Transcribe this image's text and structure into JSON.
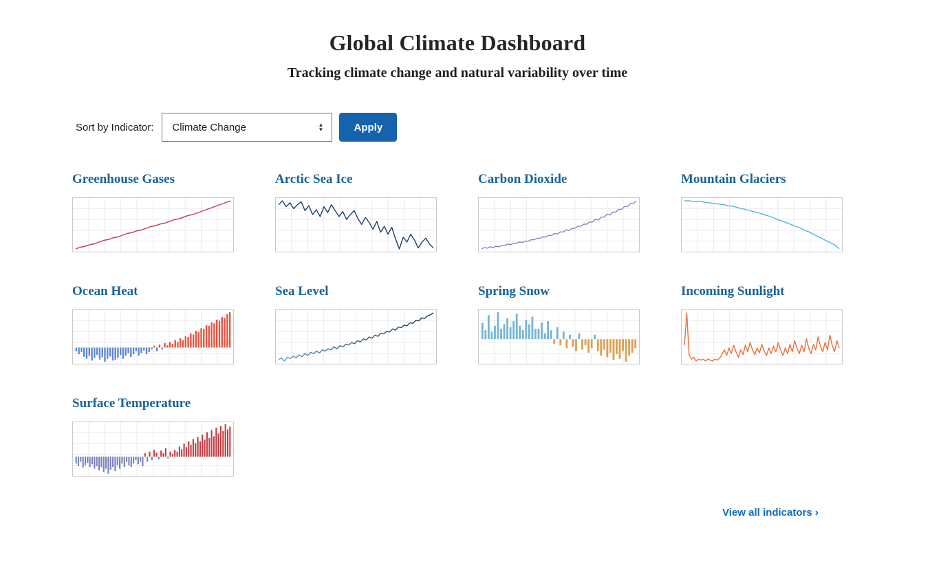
{
  "header": {
    "title": "Global Climate Dashboard",
    "subtitle": "Tracking climate change and natural variability over time"
  },
  "controls": {
    "sort_label": "Sort by Indicator:",
    "selected_option": "Climate Change",
    "apply_label": "Apply"
  },
  "footer": {
    "view_all_label": "View all indicators",
    "chevron": "›"
  },
  "colors": {
    "accent_blue": "#1663ad",
    "title_blue": "#17649c",
    "link_blue": "#0f6cbf"
  },
  "chart_data": [
    {
      "title": "Greenhouse Gases",
      "type": "line",
      "color": "#c23b4e",
      "values": [
        0.3,
        0.32,
        0.33,
        0.35,
        0.36,
        0.38,
        0.4,
        0.41,
        0.43,
        0.44,
        0.46,
        0.48,
        0.49,
        0.51,
        0.52,
        0.54,
        0.56,
        0.57,
        0.59,
        0.6,
        0.62,
        0.64,
        0.65,
        0.67,
        0.69,
        0.7,
        0.72,
        0.74,
        0.76,
        0.78,
        0.8,
        0.82,
        0.84,
        0.86
      ]
    },
    {
      "title": "Arctic Sea Ice",
      "type": "line",
      "color": "#1d3f6e",
      "values": [
        0.8,
        0.84,
        0.78,
        0.82,
        0.76,
        0.8,
        0.83,
        0.74,
        0.79,
        0.7,
        0.75,
        0.68,
        0.78,
        0.72,
        0.8,
        0.74,
        0.68,
        0.73,
        0.65,
        0.7,
        0.74,
        0.66,
        0.6,
        0.67,
        0.62,
        0.55,
        0.63,
        0.52,
        0.58,
        0.5,
        0.57,
        0.45,
        0.35,
        0.47,
        0.42,
        0.5,
        0.44,
        0.36,
        0.42,
        0.46,
        0.4,
        0.36
      ]
    },
    {
      "title": "Carbon Dioxide",
      "type": "line",
      "color": "#8f7fc0",
      "values": [
        0.16,
        0.18,
        0.17,
        0.19,
        0.18,
        0.2,
        0.19,
        0.21,
        0.21,
        0.23,
        0.22,
        0.24,
        0.24,
        0.26,
        0.25,
        0.27,
        0.27,
        0.29,
        0.29,
        0.31,
        0.31,
        0.33,
        0.33,
        0.35,
        0.35,
        0.38,
        0.37,
        0.4,
        0.4,
        0.43,
        0.42,
        0.45,
        0.45,
        0.48,
        0.48,
        0.51,
        0.51,
        0.54,
        0.54,
        0.58,
        0.57,
        0.61,
        0.61,
        0.65,
        0.64,
        0.68,
        0.68,
        0.72,
        0.72,
        0.76,
        0.76,
        0.8,
        0.8,
        0.84
      ]
    },
    {
      "title": "Mountain Glaciers",
      "type": "line",
      "color": "#56b3dc",
      "values": [
        0.92,
        0.92,
        0.91,
        0.91,
        0.9,
        0.89,
        0.88,
        0.87,
        0.86,
        0.85,
        0.83,
        0.82,
        0.8,
        0.78,
        0.76,
        0.74,
        0.72,
        0.7,
        0.67,
        0.65,
        0.62,
        0.59,
        0.56,
        0.53,
        0.5,
        0.47,
        0.44,
        0.4,
        0.37,
        0.33,
        0.29,
        0.25,
        0.21,
        0.17,
        0.13,
        0.06
      ]
    },
    {
      "title": "Ocean Heat",
      "type": "bar",
      "pos_color": "#e8503a",
      "neg_color": "#5c86d6",
      "values": [
        -0.1,
        -0.18,
        -0.12,
        -0.25,
        -0.3,
        -0.22,
        -0.35,
        -0.28,
        -0.2,
        -0.32,
        -0.26,
        -0.38,
        -0.3,
        -0.24,
        -0.35,
        -0.33,
        -0.28,
        -0.2,
        -0.3,
        -0.22,
        -0.15,
        -0.25,
        -0.18,
        -0.1,
        -0.22,
        -0.15,
        -0.08,
        -0.18,
        -0.12,
        -0.05,
        0.05,
        -0.1,
        0.08,
        -0.05,
        0.12,
        0.06,
        0.15,
        0.1,
        0.2,
        0.15,
        0.25,
        0.2,
        0.3,
        0.28,
        0.38,
        0.35,
        0.45,
        0.42,
        0.52,
        0.5,
        0.6,
        0.58,
        0.68,
        0.65,
        0.75,
        0.72,
        0.82,
        0.8,
        0.9,
        0.95
      ]
    },
    {
      "title": "Sea Level",
      "type": "line",
      "color": "#2e6086",
      "gradient": [
        "#6d9cbe",
        "#0d2b4e"
      ],
      "values": [
        0.12,
        0.15,
        0.1,
        0.16,
        0.14,
        0.18,
        0.15,
        0.2,
        0.17,
        0.22,
        0.19,
        0.24,
        0.22,
        0.26,
        0.23,
        0.28,
        0.26,
        0.3,
        0.28,
        0.33,
        0.3,
        0.35,
        0.33,
        0.37,
        0.36,
        0.4,
        0.38,
        0.43,
        0.41,
        0.46,
        0.44,
        0.49,
        0.47,
        0.52,
        0.5,
        0.55,
        0.54,
        0.58,
        0.57,
        0.62,
        0.6,
        0.65,
        0.64,
        0.68,
        0.67,
        0.72,
        0.71,
        0.76,
        0.75,
        0.8,
        0.79,
        0.83,
        0.85,
        0.88
      ]
    },
    {
      "title": "Spring Snow",
      "type": "bar",
      "pos_color": "#74b4d4",
      "neg_color": "#dca04e",
      "values": [
        0.55,
        0.3,
        0.8,
        0.25,
        0.45,
        0.9,
        0.35,
        0.5,
        0.7,
        0.4,
        0.6,
        0.85,
        0.45,
        0.3,
        0.65,
        0.5,
        0.75,
        0.35,
        0.35,
        0.55,
        0.2,
        0.6,
        0.3,
        -0.15,
        0.4,
        -0.2,
        0.25,
        -0.3,
        0.15,
        -0.25,
        -0.4,
        0.2,
        -0.35,
        -0.2,
        -0.45,
        -0.3,
        0.15,
        -0.4,
        -0.55,
        -0.35,
        -0.6,
        -0.45,
        -0.7,
        -0.5,
        -0.65,
        -0.4,
        -0.75,
        -0.55,
        -0.45,
        -0.3
      ]
    },
    {
      "title": "Incoming Sunlight",
      "type": "line",
      "color": "#e9703c",
      "values": [
        0.55,
        0.9,
        0.45,
        0.4,
        0.42,
        0.38,
        0.4,
        0.39,
        0.4,
        0.38,
        0.4,
        0.39,
        0.38,
        0.4,
        0.39,
        0.41,
        0.45,
        0.5,
        0.44,
        0.52,
        0.46,
        0.55,
        0.48,
        0.42,
        0.5,
        0.45,
        0.55,
        0.48,
        0.58,
        0.5,
        0.45,
        0.52,
        0.47,
        0.56,
        0.49,
        0.44,
        0.52,
        0.46,
        0.54,
        0.48,
        0.58,
        0.5,
        0.44,
        0.52,
        0.46,
        0.56,
        0.48,
        0.6,
        0.52,
        0.46,
        0.55,
        0.48,
        0.62,
        0.52,
        0.46,
        0.56,
        0.5,
        0.64,
        0.54,
        0.48,
        0.58,
        0.5,
        0.66,
        0.55,
        0.48,
        0.6,
        0.52
      ]
    },
    {
      "title": "Surface Temperature",
      "type": "bar",
      "pos_color": "#c53a3e",
      "neg_color": "#7580bc",
      "values": [
        -0.2,
        -0.28,
        -0.15,
        -0.32,
        -0.25,
        -0.18,
        -0.3,
        -0.22,
        -0.35,
        -0.28,
        -0.4,
        -0.3,
        -0.45,
        -0.35,
        -0.5,
        -0.38,
        -0.3,
        -0.42,
        -0.25,
        -0.35,
        -0.2,
        -0.3,
        -0.15,
        -0.25,
        -0.3,
        -0.2,
        -0.1,
        -0.22,
        -0.15,
        -0.28,
        0.1,
        -0.15,
        0.15,
        -0.1,
        0.2,
        0.12,
        -0.08,
        0.18,
        0.1,
        0.25,
        -0.05,
        0.15,
        0.08,
        0.2,
        0.15,
        0.3,
        0.22,
        0.38,
        0.28,
        0.45,
        0.35,
        0.52,
        0.4,
        0.58,
        0.45,
        0.65,
        0.5,
        0.72,
        0.55,
        0.78,
        0.6,
        0.85,
        0.68,
        0.9,
        0.75,
        0.95,
        0.8,
        0.88
      ]
    }
  ]
}
